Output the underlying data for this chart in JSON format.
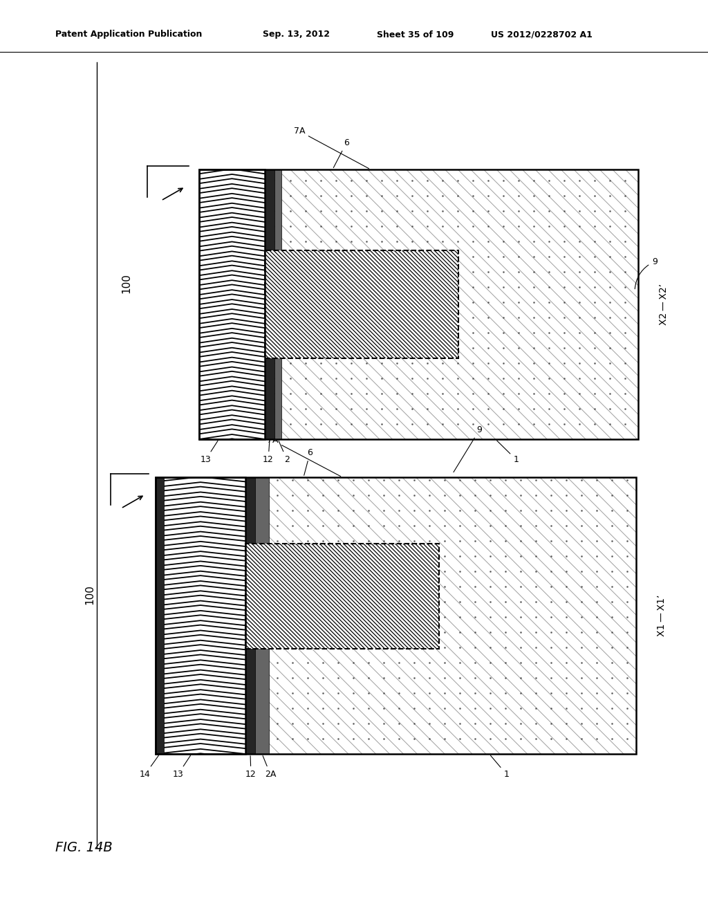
{
  "bg_color": "#ffffff",
  "header_text": "Patent Application Publication",
  "header_date": "Sep. 13, 2012",
  "header_sheet": "Sheet 35 of 109",
  "header_patent": "US 2012/0228702 A1",
  "fig_label": "FIG. 14B",
  "line_color": "#000000",
  "gray_line_color": "#888888",
  "dot_color": "#555555"
}
